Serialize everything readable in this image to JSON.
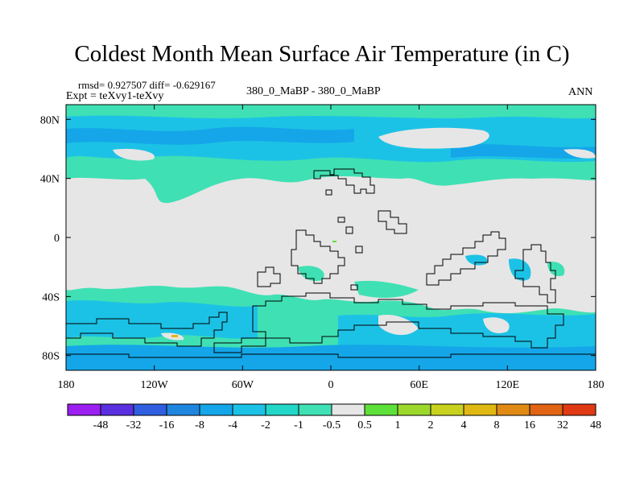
{
  "chart_data": {
    "type": "heatmap",
    "title": "Coldest Month Mean Surface Air Temperature (in C)",
    "stats_text": "rmsd= 0.927507  diff= -0.629167",
    "experiment_text": "Expt = teXvy1-teXvy",
    "comparison_text": "380_0_MaBP - 380_0_MaBP",
    "season": "ANN",
    "projection": "cylindrical equidistant",
    "xlim": [
      -180,
      180
    ],
    "ylim": [
      -90,
      90
    ],
    "x_ticks": [
      {
        "value": -180,
        "label": "180"
      },
      {
        "value": -120,
        "label": "120W"
      },
      {
        "value": -60,
        "label": "60W"
      },
      {
        "value": 0,
        "label": "0"
      },
      {
        "value": 60,
        "label": "60E"
      },
      {
        "value": 120,
        "label": "120E"
      },
      {
        "value": 180,
        "label": "180"
      }
    ],
    "y_ticks": [
      {
        "value": 80,
        "label": "80N"
      },
      {
        "value": 40,
        "label": "40N"
      },
      {
        "value": 0,
        "label": "0"
      },
      {
        "value": -40,
        "label": "40S"
      },
      {
        "value": -80,
        "label": "80S"
      }
    ],
    "colorbar": {
      "boundaries": [
        "-48",
        "-32",
        "-16",
        "-8",
        "-4",
        "-2",
        "-1",
        "-0.5",
        "0.5",
        "1",
        "2",
        "4",
        "8",
        "16",
        "32",
        "48"
      ],
      "colors": [
        "#9b1ff0",
        "#5a2fe0",
        "#2f5fe0",
        "#1f86e0",
        "#14a6e8",
        "#1cc2e6",
        "#22d6c8",
        "#3fe0b4",
        "#e6e6e6",
        "#5ee03a",
        "#9cd82c",
        "#c8d21e",
        "#e0b814",
        "#e08a14",
        "#e06414",
        "#e03a14"
      ]
    },
    "field_colors": {
      "neutral": "#e6e6e6",
      "bin_neg_0_5_to_neg_1": "#3fe0b4",
      "bin_neg_1_to_neg_2": "#1cc2e6",
      "bin_neg_2_to_neg_4": "#14a6e8",
      "bin_positive_small": "#5ee03a",
      "bin_positive_large": "#e0b814"
    },
    "field_regions": [
      {
        "bin": "-0.5 to -1",
        "lon": [
          -180,
          180
        ],
        "lat": [
          36,
          90
        ]
      },
      {
        "bin": "-1 to -2",
        "lon": [
          -180,
          -60
        ],
        "lat": [
          72,
          85
        ]
      },
      {
        "bin": "-1 to -2",
        "lon": [
          -60,
          100
        ],
        "lat": [
          60,
          80
        ]
      },
      {
        "bin": "-0.5 to -1",
        "lon": [
          -180,
          180
        ],
        "lat": [
          -90,
          -40
        ]
      },
      {
        "bin": "-1 to -2",
        "lon": [
          -180,
          180
        ],
        "lat": [
          -90,
          -58
        ]
      },
      {
        "bin": "-0.5 to 0.5",
        "lon": [
          -180,
          180
        ],
        "lat": [
          -38,
          36
        ]
      }
    ]
  }
}
